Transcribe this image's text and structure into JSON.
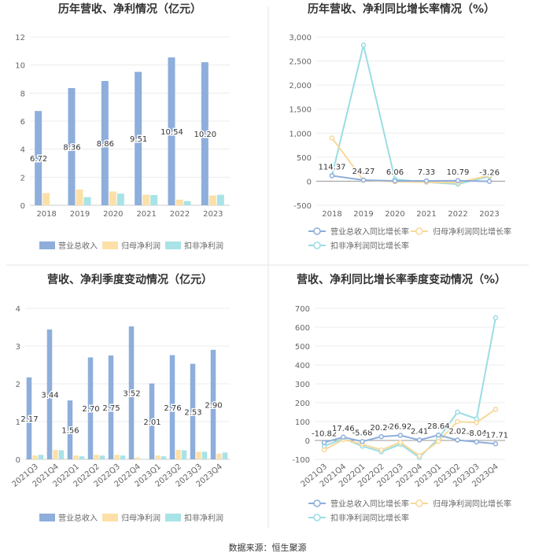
{
  "source": "数据来源：恒生聚源",
  "colors": {
    "revenue": "#8eaedb",
    "profit": "#fde0a8",
    "deducted": "#a8e3e6",
    "rev_line": "#8eaedb",
    "profit_line": "#f8d89a",
    "deducted_line": "#9adde3"
  },
  "chart_data": [
    {
      "type": "bar",
      "title": "历年营收、净利情况（亿元）",
      "categories": [
        "2018",
        "2019",
        "2020",
        "2021",
        "2022",
        "2023"
      ],
      "ylim": [
        0,
        12
      ],
      "yticks": [
        "0",
        "2",
        "4",
        "6",
        "8",
        "10",
        "12"
      ],
      "series": [
        {
          "name": "营业总收入",
          "values": [
            6.72,
            8.36,
            8.86,
            9.51,
            10.54,
            10.2
          ]
        },
        {
          "name": "归母净利润",
          "values": [
            0.87,
            1.12,
            0.98,
            0.76,
            0.4,
            0.7
          ]
        },
        {
          "name": "扣非净利润",
          "values": [
            0.01,
            0.58,
            0.83,
            0.73,
            0.3,
            0.75
          ]
        }
      ],
      "data_labels": [
        "6.72",
        "8.36",
        "8.86",
        "9.51",
        "10.54",
        "10.20"
      ]
    },
    {
      "type": "line",
      "title": "历年营收、净利同比增长率情况（%）",
      "categories": [
        "2018",
        "2019",
        "2020",
        "2021",
        "2022",
        "2023"
      ],
      "ylim": [
        -500,
        3000
      ],
      "yticks": [
        "-500",
        "0",
        "500",
        "1,000",
        "1,500",
        "2,000",
        "2,500",
        "3,000"
      ],
      "series": [
        {
          "name": "营业总收入同比增长率",
          "values": [
            114.37,
            24.27,
            6.06,
            7.33,
            10.79,
            -3.26
          ]
        },
        {
          "name": "归母净利润同比增长率",
          "values": [
            900,
            20,
            -10,
            -20,
            -30,
            120
          ]
        },
        {
          "name": "扣非净利润同比增长率",
          "values": [
            120,
            2830,
            40,
            -20,
            -60,
            100
          ]
        }
      ],
      "data_labels": [
        "114.37",
        "24.27",
        "6.06",
        "7.33",
        "10.79",
        "-3.26"
      ]
    },
    {
      "type": "bar",
      "title": "营收、净利季度变动情况（亿元）",
      "categories": [
        "2021Q3",
        "2021Q4",
        "2022Q1",
        "2022Q2",
        "2022Q3",
        "2022Q4",
        "2023Q1",
        "2023Q2",
        "2023Q3",
        "2023Q4"
      ],
      "ylim": [
        0,
        4
      ],
      "yticks": [
        "0",
        "1",
        "2",
        "3",
        "4"
      ],
      "series": [
        {
          "name": "营业总收入",
          "values": [
            2.17,
            3.44,
            1.56,
            2.7,
            2.75,
            3.52,
            2.01,
            2.76,
            2.53,
            2.9
          ]
        },
        {
          "name": "归母净利润",
          "values": [
            0.1,
            0.25,
            0.1,
            0.12,
            0.12,
            0.05,
            0.1,
            0.25,
            0.2,
            0.15
          ]
        },
        {
          "name": "扣非净利润",
          "values": [
            0.12,
            0.24,
            0.08,
            0.1,
            0.1,
            0.01,
            0.08,
            0.24,
            0.2,
            0.18
          ]
        }
      ],
      "data_labels": [
        "2.17",
        "3.44",
        "1.56",
        "2.70",
        "2.75",
        "3.52",
        "2.01",
        "2.76",
        "2.53",
        "2.90"
      ]
    },
    {
      "type": "line",
      "title": "营收、净利同比增长率季度变动情况（%）",
      "categories": [
        "2021Q3",
        "2021Q4",
        "2022Q1",
        "2022Q2",
        "2022Q3",
        "2022Q4",
        "2023Q1",
        "2023Q2",
        "2023Q3",
        "2023Q4"
      ],
      "ylim": [
        -100,
        700
      ],
      "yticks": [
        "-100",
        "0",
        "100",
        "200",
        "300",
        "400",
        "500",
        "600",
        "700"
      ],
      "series": [
        {
          "name": "营业总收入同比增长率",
          "values": [
            -10.82,
            17.46,
            -5.68,
            20.2,
            26.92,
            2.41,
            28.64,
            2.02,
            -8.04,
            -17.71
          ]
        },
        {
          "name": "归母净利润同比增长率",
          "values": [
            -50,
            5,
            -20,
            -50,
            -10,
            -80,
            -5,
            100,
            95,
            165
          ]
        },
        {
          "name": "扣非净利润同比增长率",
          "values": [
            -30,
            10,
            -30,
            -60,
            -20,
            -90,
            10,
            150,
            115,
            650
          ]
        }
      ],
      "data_labels": [
        "-10.82",
        "17.46",
        "-5.68",
        "20.20",
        "26.92",
        "2.41",
        "28.64",
        "2.02",
        "-8.04",
        "-17.71"
      ]
    }
  ]
}
